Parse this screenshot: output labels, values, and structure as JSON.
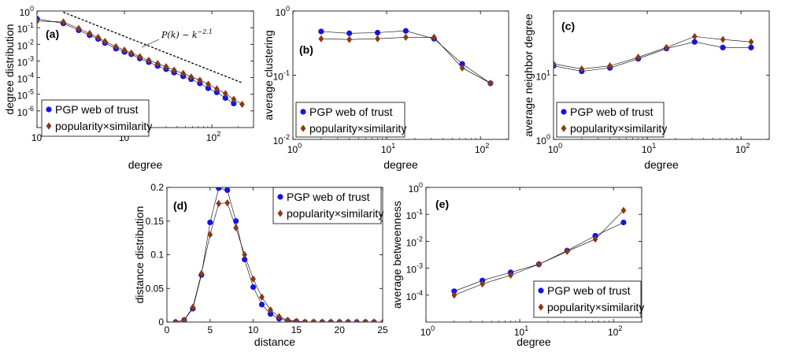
{
  "colors": {
    "pgp": "#1414e0",
    "pop": "#8b3a12",
    "line": "#000000",
    "fit": "#000000"
  },
  "chart_data": [
    {
      "type": "scatter",
      "panel": "(a)",
      "xscale": "log",
      "yscale": "log",
      "xlim": [
        1,
        300
      ],
      "ylim": [
        1e-07,
        1
      ],
      "xlabel": "degree",
      "ylabel": "degree distribution",
      "xticks": [
        {
          "v": 1,
          "b": "10",
          "e": "0"
        },
        {
          "v": 10,
          "b": "10",
          "e": "1"
        },
        {
          "v": 100,
          "b": "10",
          "e": "2"
        }
      ],
      "yticks": [
        {
          "v": 1e-06,
          "b": "10",
          "e": "-6"
        },
        {
          "v": 1e-05,
          "b": "10",
          "e": "-5"
        },
        {
          "v": 0.0001,
          "b": "10",
          "e": "-4"
        },
        {
          "v": 0.001,
          "b": "10",
          "e": "-3"
        },
        {
          "v": 0.01,
          "b": "10",
          "e": "-2"
        },
        {
          "v": 0.1,
          "b": "10",
          "e": "-1"
        },
        {
          "v": 1,
          "b": "10",
          "e": "0"
        }
      ],
      "legend": "bottom-left",
      "annotation": {
        "text": "P(k) ∼ k",
        "sup": "−2.1"
      },
      "fit_line": {
        "x": [
          2,
          220
        ],
        "y": [
          0.85,
          5e-05
        ]
      },
      "series": [
        {
          "name": "PGP web of trust",
          "marker": "circle",
          "x": [
            1,
            2,
            3,
            4,
            5,
            6,
            8,
            10,
            12,
            15,
            19,
            24,
            30,
            37,
            47,
            58,
            73,
            91,
            114,
            143,
            178
          ],
          "y": [
            0.34,
            0.18,
            0.07,
            0.035,
            0.021,
            0.012,
            0.0055,
            0.0035,
            0.0025,
            0.0014,
            0.00085,
            0.0005,
            0.00032,
            0.0002,
            0.00012,
            8e-05,
            4.5e-05,
            2.3e-05,
            1.3e-05,
            6e-06,
            2.8e-06
          ]
        },
        {
          "name": "popularity×similarity",
          "marker": "diamond",
          "x": [
            1,
            2,
            3,
            4,
            5,
            6,
            8,
            10,
            12,
            15,
            19,
            24,
            30,
            37,
            47,
            58,
            73,
            91,
            114,
            143,
            178,
            222
          ],
          "y": [
            0.25,
            0.22,
            0.09,
            0.045,
            0.026,
            0.015,
            0.0072,
            0.0045,
            0.003,
            0.0018,
            0.0011,
            0.0007,
            0.00045,
            0.00028,
            0.00018,
            0.00011,
            7e-05,
            4e-05,
            2.1e-05,
            1.1e-05,
            5e-06,
            2.5e-06
          ]
        }
      ]
    },
    {
      "type": "scatter",
      "panel": "(b)",
      "xscale": "log",
      "yscale": "log",
      "xlim": [
        1,
        200
      ],
      "ylim": [
        0.01,
        1
      ],
      "xlabel": "degree",
      "ylabel": "average clustering",
      "xticks": [
        {
          "v": 1,
          "b": "10",
          "e": "0"
        },
        {
          "v": 10,
          "b": "10",
          "e": "1"
        },
        {
          "v": 100,
          "b": "10",
          "e": "2"
        }
      ],
      "yticks": [
        {
          "v": 0.01,
          "b": "10",
          "e": "-2"
        },
        {
          "v": 0.1,
          "b": "10",
          "e": "-1"
        },
        {
          "v": 1,
          "b": "10",
          "e": "0"
        }
      ],
      "legend": "bottom-left",
      "series": [
        {
          "name": "PGP web of trust",
          "marker": "circle",
          "x": [
            2,
            4,
            8,
            16,
            32,
            64,
            128
          ],
          "y": [
            0.48,
            0.45,
            0.46,
            0.49,
            0.37,
            0.15,
            0.075
          ]
        },
        {
          "name": "popularity×similarity",
          "marker": "diamond",
          "x": [
            2,
            4,
            8,
            16,
            32,
            64,
            128
          ],
          "y": [
            0.37,
            0.36,
            0.37,
            0.39,
            0.39,
            0.13,
            0.075
          ]
        }
      ]
    },
    {
      "type": "scatter",
      "panel": "(c)",
      "xscale": "log",
      "yscale": "log",
      "xlim": [
        1,
        200
      ],
      "ylim": [
        1,
        100
      ],
      "xlabel": "degree",
      "ylabel": "average neighbor degree",
      "xticks": [
        {
          "v": 1,
          "b": "10",
          "e": "0"
        },
        {
          "v": 10,
          "b": "10",
          "e": "1"
        },
        {
          "v": 100,
          "b": "10",
          "e": "2"
        }
      ],
      "yticks": [
        {
          "v": 1,
          "b": "10",
          "e": "0"
        },
        {
          "v": 10,
          "b": "10",
          "e": "1"
        }
      ],
      "legend": "bottom-left",
      "series": [
        {
          "name": "PGP web of trust",
          "marker": "circle",
          "x": [
            1,
            2,
            4,
            8,
            16,
            32,
            64,
            128
          ],
          "y": [
            14,
            11.5,
            13,
            18,
            26,
            33,
            27,
            27
          ]
        },
        {
          "name": "popularity×similarity",
          "marker": "diamond",
          "x": [
            1,
            2,
            4,
            8,
            16,
            32,
            64,
            128
          ],
          "y": [
            15,
            12.5,
            14,
            19,
            27,
            40,
            36,
            33
          ]
        }
      ]
    },
    {
      "type": "line",
      "panel": "(d)",
      "xscale": "linear",
      "yscale": "linear",
      "xlim": [
        0,
        25
      ],
      "ylim": [
        0,
        0.2
      ],
      "xlabel": "distance",
      "ylabel": "distance distribution",
      "xticks": [
        {
          "v": 0,
          "t": "0"
        },
        {
          "v": 5,
          "t": "5"
        },
        {
          "v": 10,
          "t": "10"
        },
        {
          "v": 15,
          "t": "15"
        },
        {
          "v": 20,
          "t": "20"
        },
        {
          "v": 25,
          "t": "25"
        }
      ],
      "yticks": [
        {
          "v": 0,
          "t": "0"
        },
        {
          "v": 0.05,
          "t": "0.05"
        },
        {
          "v": 0.1,
          "t": "0.1"
        },
        {
          "v": 0.15,
          "t": "0.15"
        },
        {
          "v": 0.2,
          "t": "0.2"
        }
      ],
      "legend": "top-right",
      "series": [
        {
          "name": "PGP web of trust",
          "marker": "circle",
          "x": [
            1,
            2,
            3,
            4,
            5,
            6,
            7,
            8,
            9,
            10,
            11,
            12,
            13,
            14,
            15,
            16,
            17,
            18,
            19,
            20,
            21,
            22,
            23,
            24
          ],
          "y": [
            0,
            0.003,
            0.02,
            0.07,
            0.148,
            0.199,
            0.196,
            0.15,
            0.093,
            0.052,
            0.026,
            0.012,
            0.005,
            0.002,
            0.001,
            0,
            0,
            0,
            0,
            0,
            0,
            0,
            0,
            0
          ]
        },
        {
          "name": "popularity×similarity",
          "marker": "diamond",
          "x": [
            1,
            2,
            3,
            4,
            5,
            6,
            7,
            8,
            9,
            10,
            11,
            12,
            13,
            14,
            15,
            16,
            17,
            18,
            19,
            20,
            21,
            22,
            23,
            24,
            25
          ],
          "y": [
            0,
            0.003,
            0.022,
            0.072,
            0.13,
            0.176,
            0.177,
            0.14,
            0.1,
            0.064,
            0.037,
            0.018,
            0.008,
            0.003,
            0.001,
            0,
            0,
            0,
            0,
            0,
            0,
            0,
            0,
            0,
            0
          ]
        }
      ]
    },
    {
      "type": "scatter",
      "panel": "(e)",
      "xscale": "log",
      "yscale": "log",
      "xlim": [
        1,
        200
      ],
      "ylim": [
        1e-05,
        1
      ],
      "xlabel": "degree",
      "ylabel": "average betweenness",
      "xticks": [
        {
          "v": 1,
          "b": "10",
          "e": "0"
        },
        {
          "v": 10,
          "b": "10",
          "e": "1"
        },
        {
          "v": 100,
          "b": "10",
          "e": "2"
        }
      ],
      "yticks": [
        {
          "v": 0.0001,
          "b": "10",
          "e": "-4"
        },
        {
          "v": 0.001,
          "b": "10",
          "e": "-3"
        },
        {
          "v": 0.01,
          "b": "10",
          "e": "-2"
        },
        {
          "v": 0.1,
          "b": "10",
          "e": "-1"
        },
        {
          "v": 1,
          "b": "10",
          "e": "0"
        }
      ],
      "legend": "bottom-right",
      "series": [
        {
          "name": "PGP web of trust",
          "marker": "circle",
          "x": [
            2,
            4,
            8,
            16,
            32,
            64,
            128
          ],
          "y": [
            0.00014,
            0.00035,
            0.0007,
            0.0014,
            0.0045,
            0.016,
            0.05
          ]
        },
        {
          "name": "popularity×similarity",
          "marker": "diamond",
          "x": [
            2,
            4,
            8,
            16,
            32,
            64,
            128
          ],
          "y": [
            0.0001,
            0.00026,
            0.00055,
            0.0014,
            0.0042,
            0.012,
            0.14
          ]
        }
      ]
    }
  ]
}
